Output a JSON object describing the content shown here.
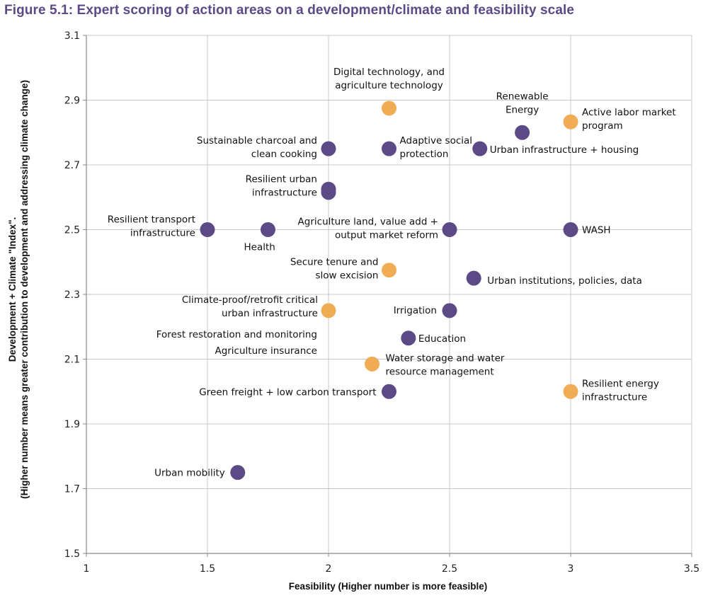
{
  "chart_data": {
    "type": "scatter",
    "title": "Figure 5.1: Expert scoring of action areas on a development/climate and feasibility scale",
    "xlabel": "Feasibility (Higher number is more feasible)",
    "ylabel_lines": [
      "Development + Climate \"Index\".",
      "(Higher number means greater contribution to development and addressing climate change)"
    ],
    "xlim": [
      1,
      3.5
    ],
    "ylim": [
      1.5,
      3.1
    ],
    "xticks": [
      "1",
      "1.5",
      "2",
      "2.5",
      "3",
      "3.5"
    ],
    "xtick_values": [
      1,
      1.5,
      2,
      2.5,
      3,
      3.5
    ],
    "yticks": [
      "1.5",
      "1.7",
      "1.9",
      "2.1",
      "2.3",
      "2.5",
      "2.7",
      "2.9",
      "3.1"
    ],
    "ytick_values": [
      1.5,
      1.7,
      1.9,
      2.1,
      2.3,
      2.5,
      2.7,
      2.9,
      3.1
    ],
    "grid": true,
    "colors": {
      "purple": "#5b4a86",
      "orange": "#f0ad55",
      "grid": "#c8c8c8"
    },
    "points": [
      {
        "x": 1.5,
        "y": 2.5,
        "color": "purple",
        "label": [
          "Resilient transport",
          "infrastructure"
        ]
      },
      {
        "x": 1.75,
        "y": 2.5,
        "color": "purple",
        "label": [
          "Health"
        ]
      },
      {
        "x": 1.625,
        "y": 1.75,
        "color": "purple",
        "label": [
          "Urban mobility"
        ]
      },
      {
        "x": 2.0,
        "y": 2.75,
        "color": "purple",
        "label": [
          "Sustainable charcoal and",
          "clean cooking"
        ]
      },
      {
        "x": 2.0,
        "y": 2.625,
        "color": "purple",
        "label": [
          "Resilient urban",
          "infrastructure"
        ]
      },
      {
        "x": 2.0,
        "y": 2.615,
        "color": "purple",
        "label": []
      },
      {
        "x": 2.0,
        "y": 2.25,
        "color": "orange",
        "label": [
          "Climate-proof/retrofit critical",
          "urban infrastructure"
        ]
      },
      {
        "x": 2.25,
        "y": 2.875,
        "color": "orange",
        "label": [
          "Digital technology, and",
          "agriculture technology"
        ]
      },
      {
        "x": 2.25,
        "y": 2.75,
        "color": "purple",
        "label": [
          "Adaptive social",
          "protection"
        ]
      },
      {
        "x": 2.25,
        "y": 2.375,
        "color": "orange",
        "label": [
          "Secure tenure and",
          "slow excision"
        ]
      },
      {
        "x": 2.25,
        "y": 2.0,
        "color": "purple",
        "label": [
          "Green freight + low carbon transport"
        ]
      },
      {
        "x": 2.18,
        "y": 2.085,
        "color": "orange",
        "label": [
          "Water storage and water",
          "resource management"
        ]
      },
      {
        "x": 2.33,
        "y": 2.165,
        "color": "purple",
        "label": [
          "Education"
        ]
      },
      {
        "x": 2.5,
        "y": 2.5,
        "color": "purple",
        "label": [
          "Agriculture land, value add +",
          "output market reform"
        ]
      },
      {
        "x": 2.5,
        "y": 2.25,
        "color": "purple",
        "label": [
          "Irrigation"
        ]
      },
      {
        "x": 2.6,
        "y": 2.35,
        "color": "purple",
        "label": [
          "Urban institutions, policies, data"
        ]
      },
      {
        "x": 2.625,
        "y": 2.75,
        "color": "purple",
        "label": [
          "Urban infrastructure + housing"
        ]
      },
      {
        "x": 2.8,
        "y": 2.8,
        "color": "purple",
        "label": [
          "Renewable",
          "Energy"
        ]
      },
      {
        "x": 3.0,
        "y": 2.833,
        "color": "orange",
        "label": [
          "Active labor market",
          "program"
        ]
      },
      {
        "x": 3.0,
        "y": 2.5,
        "color": "purple",
        "label": [
          "WASH"
        ]
      },
      {
        "x": 3.0,
        "y": 2.0,
        "color": "orange",
        "label": [
          "Resilient energy",
          "infrastructure"
        ]
      }
    ],
    "unplotted_labels": [
      "Forest restoration and monitoring",
      "Agriculture insurance"
    ]
  }
}
